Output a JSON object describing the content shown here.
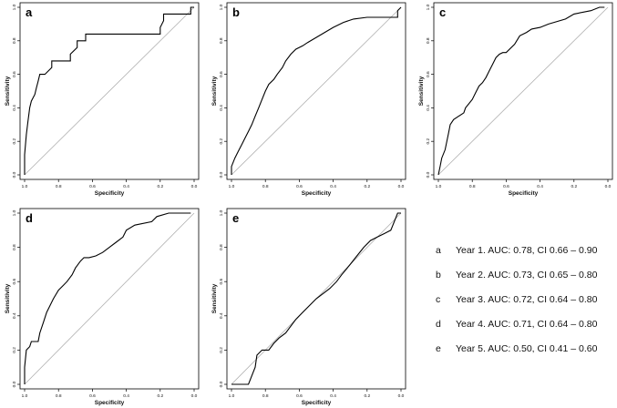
{
  "legend": [
    {
      "letter": "a",
      "text": "Year 1. AUC: 0.78, CI 0.66 – 0.90"
    },
    {
      "letter": "b",
      "text": "Year 2. AUC: 0.73, CI 0.65 – 0.80"
    },
    {
      "letter": "c",
      "text": "Year 3. AUC: 0.72, CI 0.64 – 0.80"
    },
    {
      "letter": "d",
      "text": "Year 4. AUC: 0.71, CI 0.64 – 0.80"
    },
    {
      "letter": "e",
      "text": "Year 5. AUC: 0.50, CI 0.41 – 0.60"
    }
  ],
  "colors": {
    "curve": "#000000",
    "diagonal": "#b0b0b0",
    "frame": "#000000"
  },
  "chart_data": [
    {
      "type": "line",
      "panel_label": "a",
      "xlabel": "Specificity",
      "ylabel": "Sensitivity",
      "xlim": [
        1.0,
        0.0
      ],
      "ylim": [
        0.0,
        1.0
      ],
      "xticks": [
        "1.0",
        "0.8",
        "0.6",
        "0.4",
        "0.2",
        "0.0"
      ],
      "yticks": [
        "0.0",
        "0.2",
        "0.4",
        "0.6",
        "0.8",
        "1.0"
      ],
      "x": [
        1.0,
        1.0,
        0.99,
        0.98,
        0.97,
        0.96,
        0.94,
        0.93,
        0.92,
        0.91,
        0.88,
        0.84,
        0.84,
        0.73,
        0.73,
        0.69,
        0.69,
        0.64,
        0.64,
        0.2,
        0.2,
        0.18,
        0.18,
        0.02,
        0.02,
        0.0
      ],
      "y": [
        0.0,
        0.12,
        0.24,
        0.32,
        0.4,
        0.44,
        0.48,
        0.52,
        0.56,
        0.6,
        0.6,
        0.64,
        0.68,
        0.68,
        0.72,
        0.76,
        0.8,
        0.8,
        0.84,
        0.84,
        0.88,
        0.92,
        0.96,
        0.96,
        1.0,
        1.0
      ]
    },
    {
      "type": "line",
      "panel_label": "b",
      "xlabel": "Specificity",
      "ylabel": "Sensitivity",
      "xlim": [
        1.0,
        0.0
      ],
      "ylim": [
        0.0,
        1.0
      ],
      "xticks": [
        "1.0",
        "0.8",
        "0.6",
        "0.4",
        "0.2",
        "0.0"
      ],
      "yticks": [
        "0.0",
        "0.2",
        "0.4",
        "0.6",
        "0.8",
        "1.0"
      ],
      "x": [
        1.0,
        1.0,
        0.98,
        0.96,
        0.94,
        0.92,
        0.9,
        0.88,
        0.86,
        0.84,
        0.82,
        0.8,
        0.78,
        0.75,
        0.73,
        0.7,
        0.68,
        0.65,
        0.62,
        0.58,
        0.55,
        0.5,
        0.45,
        0.4,
        0.34,
        0.28,
        0.2,
        0.1,
        0.02,
        0.02,
        0.0
      ],
      "y": [
        0.0,
        0.05,
        0.1,
        0.14,
        0.18,
        0.22,
        0.26,
        0.3,
        0.35,
        0.4,
        0.45,
        0.5,
        0.54,
        0.57,
        0.6,
        0.64,
        0.68,
        0.72,
        0.75,
        0.77,
        0.79,
        0.82,
        0.85,
        0.88,
        0.91,
        0.93,
        0.94,
        0.94,
        0.94,
        0.98,
        1.0
      ]
    },
    {
      "type": "line",
      "panel_label": "c",
      "xlabel": "Specificity",
      "ylabel": "Sensitivity",
      "xlim": [
        1.0,
        0.0
      ],
      "ylim": [
        0.0,
        1.0
      ],
      "xticks": [
        "1.0",
        "0.8",
        "0.6",
        "0.4",
        "0.2",
        "0.0"
      ],
      "yticks": [
        "0.0",
        "0.2",
        "0.4",
        "0.6",
        "0.8",
        "1.0"
      ],
      "x": [
        1.0,
        0.99,
        0.98,
        0.96,
        0.95,
        0.94,
        0.93,
        0.91,
        0.88,
        0.85,
        0.84,
        0.8,
        0.78,
        0.76,
        0.74,
        0.72,
        0.7,
        0.68,
        0.66,
        0.64,
        0.62,
        0.6,
        0.55,
        0.52,
        0.48,
        0.45,
        0.4,
        0.35,
        0.25,
        0.2,
        0.1,
        0.05,
        0.02
      ],
      "y": [
        0.0,
        0.05,
        0.1,
        0.15,
        0.2,
        0.25,
        0.3,
        0.33,
        0.35,
        0.37,
        0.4,
        0.45,
        0.49,
        0.53,
        0.55,
        0.58,
        0.62,
        0.66,
        0.7,
        0.72,
        0.73,
        0.73,
        0.78,
        0.83,
        0.85,
        0.87,
        0.88,
        0.9,
        0.93,
        0.96,
        0.98,
        1.0,
        1.0
      ]
    },
    {
      "type": "line",
      "panel_label": "d",
      "xlabel": "Specificity",
      "ylabel": "Sensitivity",
      "xlim": [
        1.0,
        0.0
      ],
      "ylim": [
        0.0,
        1.0
      ],
      "xticks": [
        "1.0",
        "0.8",
        "0.6",
        "0.4",
        "0.2",
        "0.0"
      ],
      "yticks": [
        "0.0",
        "0.2",
        "0.4",
        "0.6",
        "0.8",
        "1.0"
      ],
      "x": [
        1.0,
        1.0,
        0.99,
        0.97,
        0.96,
        0.92,
        0.91,
        0.89,
        0.87,
        0.85,
        0.83,
        0.8,
        0.77,
        0.75,
        0.72,
        0.7,
        0.67,
        0.65,
        0.62,
        0.58,
        0.54,
        0.5,
        0.46,
        0.42,
        0.4,
        0.35,
        0.25,
        0.22,
        0.15,
        0.02
      ],
      "y": [
        0.0,
        0.1,
        0.2,
        0.22,
        0.25,
        0.25,
        0.3,
        0.36,
        0.42,
        0.46,
        0.5,
        0.55,
        0.58,
        0.6,
        0.64,
        0.68,
        0.72,
        0.74,
        0.74,
        0.75,
        0.77,
        0.8,
        0.83,
        0.86,
        0.9,
        0.93,
        0.95,
        0.98,
        1.0,
        1.0
      ]
    },
    {
      "type": "line",
      "panel_label": "e",
      "xlabel": "Specificity",
      "ylabel": "Sensitivity",
      "xlim": [
        1.0,
        0.0
      ],
      "ylim": [
        0.0,
        1.0
      ],
      "xticks": [
        "1.0",
        "0.8",
        "0.6",
        "0.4",
        "0.2",
        "0.0"
      ],
      "yticks": [
        "0.0",
        "0.2",
        "0.4",
        "0.6",
        "0.8",
        "1.0"
      ],
      "x": [
        1.0,
        0.9,
        0.88,
        0.86,
        0.85,
        0.82,
        0.78,
        0.75,
        0.72,
        0.68,
        0.65,
        0.62,
        0.58,
        0.55,
        0.5,
        0.46,
        0.42,
        0.38,
        0.35,
        0.3,
        0.26,
        0.22,
        0.18,
        0.14,
        0.1,
        0.06,
        0.04,
        0.02,
        0.0
      ],
      "y": [
        0.0,
        0.0,
        0.05,
        0.1,
        0.17,
        0.2,
        0.2,
        0.24,
        0.27,
        0.3,
        0.34,
        0.38,
        0.42,
        0.45,
        0.5,
        0.53,
        0.56,
        0.6,
        0.64,
        0.7,
        0.75,
        0.8,
        0.84,
        0.86,
        0.88,
        0.9,
        0.95,
        1.0,
        1.0
      ]
    }
  ]
}
